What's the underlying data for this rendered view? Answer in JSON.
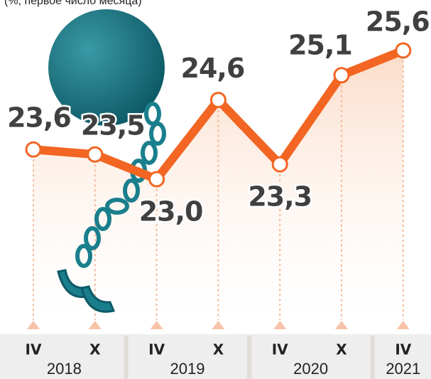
{
  "chart_data": {
    "type": "line",
    "subtitle": "(%, первое число месяца)",
    "categories": [
      "IV",
      "X",
      "IV",
      "X",
      "IV",
      "X",
      "IV"
    ],
    "groups": [
      "2018",
      "2019",
      "2020",
      "2021"
    ],
    "values": [
      23.6,
      23.5,
      23.0,
      24.6,
      23.3,
      25.1,
      25.6
    ],
    "value_labels": [
      "23,6",
      "23,5",
      "23,0",
      "24,6",
      "23,3",
      "25,1",
      "25,6"
    ],
    "color": "#f26522"
  }
}
